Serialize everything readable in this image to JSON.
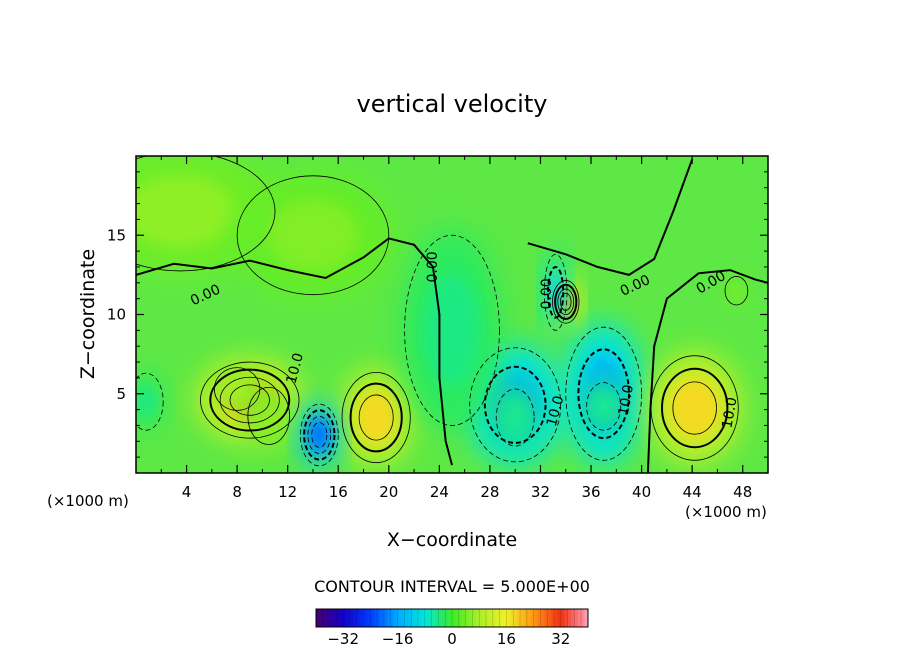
{
  "chart_data": {
    "type": "heatmap",
    "title": "vertical velocity",
    "xlabel": "X−coordinate",
    "ylabel": "Z−coordinate",
    "x_unit": "(×1000 m)",
    "y_unit": "(×1000 m)",
    "xlim": [
      0,
      50
    ],
    "ylim": [
      0,
      20
    ],
    "x_ticks": [
      4,
      8,
      12,
      16,
      20,
      24,
      28,
      32,
      36,
      40,
      44,
      48
    ],
    "y_ticks": [
      5,
      10,
      15
    ],
    "contour_interval_text": "CONTOUR INTERVAL = 5.000E+00",
    "colorbar": {
      "range": [
        -40,
        40
      ],
      "ticks": [
        -32,
        -16,
        0,
        16,
        32
      ],
      "tick_labels": [
        "−32",
        "−16",
        "0",
        "16",
        "32"
      ]
    },
    "contour_labels": [
      {
        "text": "0.00",
        "x": 5.5,
        "z": 11.2,
        "angle": -25
      },
      {
        "text": "0.00",
        "x": 23.5,
        "z": 13.0,
        "angle": -90
      },
      {
        "text": "0.00",
        "x": 32.5,
        "z": 11.3,
        "angle": -90
      },
      {
        "text": "0.00",
        "x": 39.5,
        "z": 11.8,
        "angle": -25
      },
      {
        "text": "0.00",
        "x": 45.5,
        "z": 12.0,
        "angle": -30
      },
      {
        "text": "10.0",
        "x": 12.6,
        "z": 6.6,
        "angle": -75
      },
      {
        "text": "10.0",
        "x": 33.2,
        "z": 3.9,
        "angle": -75
      },
      {
        "text": "10.0",
        "x": 38.8,
        "z": 4.6,
        "angle": -80
      },
      {
        "text": "10.0",
        "x": 47.0,
        "z": 3.8,
        "angle": -80
      }
    ],
    "features": [
      {
        "x": 9.0,
        "z": 4.6,
        "value": 20,
        "sx": 2.6,
        "sz": 1.6
      },
      {
        "x": 8.0,
        "z": 5.3,
        "value": 8,
        "sx": 1.2,
        "sz": 0.9
      },
      {
        "x": 10.5,
        "z": 3.6,
        "value": 6,
        "sx": 1.1,
        "sz": 1.2
      },
      {
        "x": 19.0,
        "z": 3.5,
        "value": 18,
        "sx": 1.8,
        "sz": 1.9
      },
      {
        "x": 14.5,
        "z": 2.4,
        "value": -20,
        "sx": 1.0,
        "sz": 1.3
      },
      {
        "x": 30.0,
        "z": 4.3,
        "value": -14,
        "sx": 2.4,
        "sz": 2.4
      },
      {
        "x": 37.0,
        "z": 5.0,
        "value": -14,
        "sx": 2.0,
        "sz": 2.8
      },
      {
        "x": 30.0,
        "z": 3.5,
        "value": -5,
        "sx": 1.0,
        "sz": 1.2
      },
      {
        "x": 37.0,
        "z": 4.2,
        "value": -5,
        "sx": 0.9,
        "sz": 1.0
      },
      {
        "x": 34.0,
        "z": 10.8,
        "value": 24,
        "sx": 0.7,
        "sz": 0.9
      },
      {
        "x": 33.2,
        "z": 11.4,
        "value": -10,
        "sx": 0.6,
        "sz": 1.6
      },
      {
        "x": 44.2,
        "z": 4.1,
        "value": 18,
        "sx": 2.3,
        "sz": 2.2
      },
      {
        "x": 47.5,
        "z": 11.5,
        "value": 5,
        "sx": 0.6,
        "sz": 0.6
      },
      {
        "x": 0.8,
        "z": 4.5,
        "value": -4,
        "sx": 0.9,
        "sz": 1.2
      },
      {
        "x": 3.5,
        "z": 16.5,
        "value": 6,
        "sx": 5.0,
        "sz": 2.5
      },
      {
        "x": 14.0,
        "z": 15.0,
        "value": 5,
        "sx": 4.0,
        "sz": 2.5
      },
      {
        "x": 25.0,
        "z": 9.0,
        "value": -4,
        "sx": 2.5,
        "sz": 4.0
      }
    ]
  }
}
